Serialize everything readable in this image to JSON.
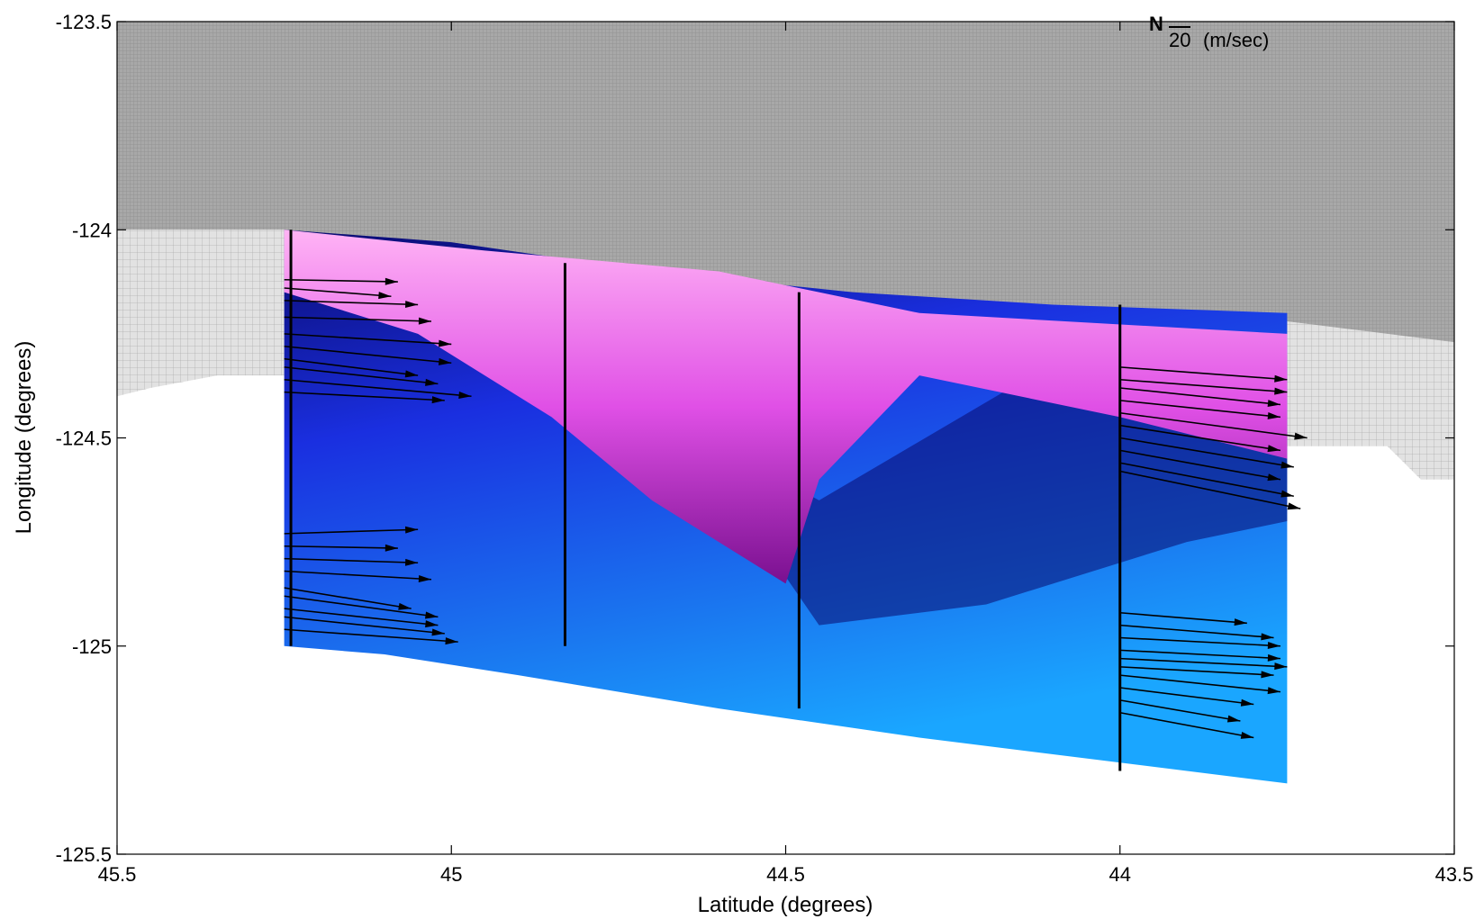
{
  "chart_data": {
    "type": "heatmap",
    "title": "",
    "xlabel": "Latitude (degrees)",
    "ylabel": "Longitude (degrees)",
    "xlim": [
      45.5,
      43.5
    ],
    "ylim": [
      -125.5,
      -123.5
    ],
    "x_reversed": true,
    "x_ticks": [
      45.5,
      45,
      44.5,
      44,
      43.5
    ],
    "x_tick_labels": [
      "45.5",
      "45",
      "44.5",
      "44",
      "43.5"
    ],
    "y_ticks": [
      -123.5,
      -124,
      -124.5,
      -125,
      -125.5
    ],
    "y_tick_labels": [
      "-123.5",
      "-124",
      "-124.5",
      "-125",
      "-125.5"
    ],
    "grid": false,
    "legend": {
      "position": "top-right",
      "symbol": "N",
      "reference_value": "20",
      "unit": "(m/sec)"
    },
    "colors": {
      "land": "#a6a6a6",
      "land_light": "#d8d8d8",
      "field_low": "#1aa6ff",
      "field_mid": "#1a2fe0",
      "field_dark": "#0a0a6e",
      "field_purple": "#a020c8",
      "field_high": "#ffb3f5"
    },
    "field_extent": {
      "lat_north": 45.25,
      "lat_south": 43.75,
      "lon_east_north": -124.0,
      "lon_east_south": -124.2,
      "lon_west_north": -125.0,
      "lon_west_south": -125.33
    },
    "high_region": [
      {
        "lat": 45.25,
        "lon": -124.0
      },
      {
        "lat": 44.95,
        "lon": -124.05
      },
      {
        "lat": 44.6,
        "lon": -124.1
      },
      {
        "lat": 44.3,
        "lon": -124.2
      },
      {
        "lat": 43.75,
        "lon": -124.25
      },
      {
        "lat": 43.75,
        "lon": -124.55
      },
      {
        "lat": 44.0,
        "lon": -124.45
      },
      {
        "lat": 44.3,
        "lon": -124.35
      },
      {
        "lat": 44.45,
        "lon": -124.6
      },
      {
        "lat": 44.5,
        "lon": -124.85
      },
      {
        "lat": 44.7,
        "lon": -124.65
      },
      {
        "lat": 44.85,
        "lon": -124.45
      },
      {
        "lat": 45.05,
        "lon": -124.25
      },
      {
        "lat": 45.25,
        "lon": -124.15
      }
    ],
    "mooring_lines": [
      {
        "lat": 45.24,
        "lon_top": -124.0,
        "lon_bottom": -125.0
      },
      {
        "lat": 44.83,
        "lon_top": -124.08,
        "lon_bottom": -125.0
      },
      {
        "lat": 44.48,
        "lon_top": -124.15,
        "lon_bottom": -125.15
      },
      {
        "lat": 44.0,
        "lon_top": -124.18,
        "lon_bottom": -125.3
      }
    ],
    "vectors": [
      {
        "lat": 45.25,
        "lon": -124.12,
        "u": -0.17,
        "v": -0.005
      },
      {
        "lat": 45.25,
        "lon": -124.14,
        "u": -0.16,
        "v": -0.02
      },
      {
        "lat": 45.25,
        "lon": -124.17,
        "u": -0.2,
        "v": -0.01
      },
      {
        "lat": 45.25,
        "lon": -124.21,
        "u": -0.22,
        "v": -0.01
      },
      {
        "lat": 45.25,
        "lon": -124.25,
        "u": -0.25,
        "v": -0.025
      },
      {
        "lat": 45.25,
        "lon": -124.28,
        "u": -0.25,
        "v": -0.04
      },
      {
        "lat": 45.25,
        "lon": -124.31,
        "u": -0.2,
        "v": -0.04
      },
      {
        "lat": 45.25,
        "lon": -124.33,
        "u": -0.23,
        "v": -0.04
      },
      {
        "lat": 45.25,
        "lon": -124.36,
        "u": -0.28,
        "v": -0.04
      },
      {
        "lat": 45.25,
        "lon": -124.39,
        "u": -0.24,
        "v": -0.02
      },
      {
        "lat": 45.25,
        "lon": -124.73,
        "u": -0.2,
        "v": 0.01
      },
      {
        "lat": 45.25,
        "lon": -124.76,
        "u": -0.17,
        "v": -0.005
      },
      {
        "lat": 45.25,
        "lon": -124.79,
        "u": -0.2,
        "v": -0.01
      },
      {
        "lat": 45.25,
        "lon": -124.82,
        "u": -0.22,
        "v": -0.02
      },
      {
        "lat": 45.25,
        "lon": -124.86,
        "u": -0.19,
        "v": -0.05
      },
      {
        "lat": 45.25,
        "lon": -124.88,
        "u": -0.23,
        "v": -0.05
      },
      {
        "lat": 45.25,
        "lon": -124.91,
        "u": -0.23,
        "v": -0.04
      },
      {
        "lat": 45.25,
        "lon": -124.93,
        "u": -0.24,
        "v": -0.04
      },
      {
        "lat": 45.25,
        "lon": -124.96,
        "u": -0.26,
        "v": -0.03
      },
      {
        "lat": 44.0,
        "lon": -124.33,
        "u": -0.25,
        "v": -0.03
      },
      {
        "lat": 44.0,
        "lon": -124.36,
        "u": -0.25,
        "v": -0.03
      },
      {
        "lat": 44.0,
        "lon": -124.38,
        "u": -0.24,
        "v": -0.04
      },
      {
        "lat": 44.0,
        "lon": -124.41,
        "u": -0.24,
        "v": -0.04
      },
      {
        "lat": 44.0,
        "lon": -124.44,
        "u": -0.28,
        "v": -0.06
      },
      {
        "lat": 44.0,
        "lon": -124.47,
        "u": -0.24,
        "v": -0.06
      },
      {
        "lat": 44.0,
        "lon": -124.5,
        "u": -0.26,
        "v": -0.07
      },
      {
        "lat": 44.0,
        "lon": -124.53,
        "u": -0.24,
        "v": -0.07
      },
      {
        "lat": 44.0,
        "lon": -124.56,
        "u": -0.26,
        "v": -0.08
      },
      {
        "lat": 44.0,
        "lon": -124.58,
        "u": -0.27,
        "v": -0.09
      },
      {
        "lat": 44.0,
        "lon": -124.92,
        "u": -0.19,
        "v": -0.025
      },
      {
        "lat": 44.0,
        "lon": -124.95,
        "u": -0.23,
        "v": -0.03
      },
      {
        "lat": 44.0,
        "lon": -124.98,
        "u": -0.24,
        "v": -0.02
      },
      {
        "lat": 44.0,
        "lon": -125.01,
        "u": -0.24,
        "v": -0.02
      },
      {
        "lat": 44.0,
        "lon": -125.03,
        "u": -0.25,
        "v": -0.02
      },
      {
        "lat": 44.0,
        "lon": -125.05,
        "u": -0.23,
        "v": -0.02
      },
      {
        "lat": 44.0,
        "lon": -125.07,
        "u": -0.24,
        "v": -0.04
      },
      {
        "lat": 44.0,
        "lon": -125.1,
        "u": -0.2,
        "v": -0.04
      },
      {
        "lat": 44.0,
        "lon": -125.13,
        "u": -0.18,
        "v": -0.05
      },
      {
        "lat": 44.0,
        "lon": -125.16,
        "u": -0.2,
        "v": -0.06
      }
    ]
  }
}
